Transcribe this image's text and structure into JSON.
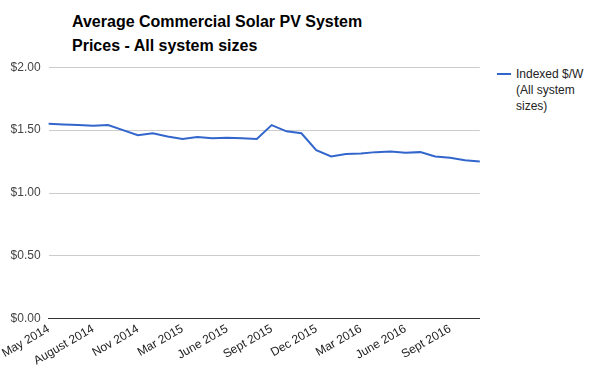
{
  "chart_data": {
    "type": "line",
    "title": "Average Commercial Solar PV System Prices - All system sizes",
    "categories": [
      "May 2014",
      null,
      null,
      "August 2014",
      null,
      null,
      "Nov 2014",
      null,
      null,
      "Mar 2015",
      null,
      null,
      "June 2015",
      null,
      null,
      "Sept 2015",
      null,
      null,
      "Dec 2015",
      null,
      null,
      "Mar 2016",
      null,
      null,
      "June 2016",
      null,
      null,
      "Sept 2016",
      null,
      null
    ],
    "series": [
      {
        "name": "Indexed $/W (All system sizes)",
        "color": "#3366cc",
        "values": [
          1.55,
          1.545,
          1.54,
          1.535,
          1.54,
          1.5,
          1.46,
          1.475,
          1.45,
          1.43,
          1.445,
          1.435,
          1.44,
          1.435,
          1.43,
          1.54,
          1.49,
          1.475,
          1.34,
          1.29,
          1.31,
          1.315,
          1.325,
          1.33,
          1.32,
          1.325,
          1.29,
          1.28,
          1.26,
          1.25
        ]
      }
    ],
    "ylim": [
      0,
      2
    ],
    "yticks": [
      {
        "value": 0,
        "label": "$0.00"
      },
      {
        "value": 0.5,
        "label": "$0.50"
      },
      {
        "value": 1,
        "label": "$1.00"
      },
      {
        "value": 1.5,
        "label": "$1.50"
      },
      {
        "value": 2,
        "label": "$2.00"
      }
    ],
    "grid": true,
    "legend": "right"
  }
}
